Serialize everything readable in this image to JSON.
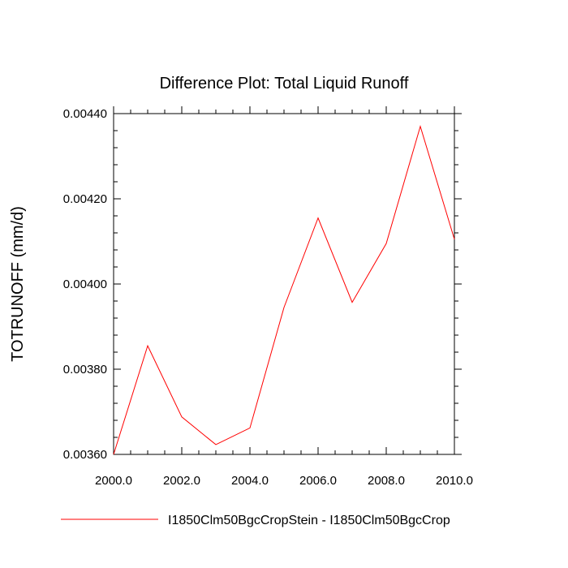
{
  "chart_data": {
    "type": "line",
    "title": "Difference Plot: Total Liquid Runoff",
    "xlabel": "",
    "ylabel": "TOTRUNOFF  (mm/d)",
    "xlim": [
      2000.0,
      2010.0
    ],
    "ylim": [
      0.0036,
      0.0044
    ],
    "x_ticks": [
      2000.0,
      2002.0,
      2004.0,
      2006.0,
      2008.0,
      2010.0
    ],
    "x_tick_labels": [
      "2000.0",
      "2002.0",
      "2004.0",
      "2006.0",
      "2008.0",
      "2010.0"
    ],
    "y_ticks": [
      0.0036,
      0.0038,
      0.004,
      0.0042,
      0.0044
    ],
    "y_tick_labels": [
      "0.00360",
      "0.00380",
      "0.00400",
      "0.00420",
      "0.00440"
    ],
    "grid": false,
    "legend_position": "bottom",
    "series": [
      {
        "name": "I1850Clm50BgcCropStein - I1850Clm50BgcCrop",
        "color": "#ff0000",
        "x": [
          2000,
          2001,
          2002,
          2003,
          2004,
          2005,
          2006,
          2007,
          2008,
          2009,
          2010
        ],
        "values": [
          0.0036,
          0.003855,
          0.003688,
          0.003623,
          0.003662,
          0.003945,
          0.004155,
          0.003957,
          0.004095,
          0.00437,
          0.004105
        ]
      }
    ]
  }
}
